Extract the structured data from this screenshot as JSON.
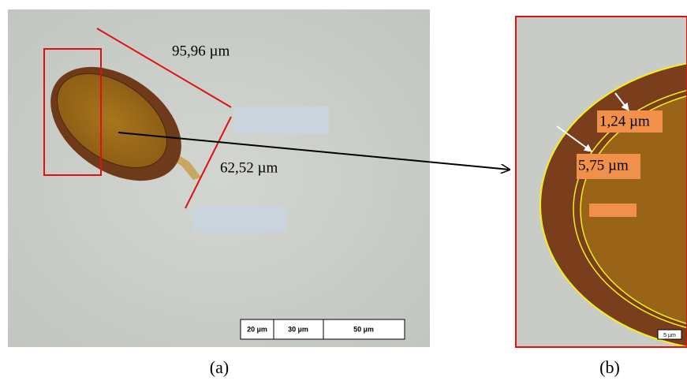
{
  "panel_a": {
    "measure_length": "95,96 µm",
    "measure_width": "62,52 µm",
    "scale_bar": [
      "20 µm",
      "30 µm",
      "50 µm"
    ],
    "caption": "(a)"
  },
  "panel_b": {
    "measure_inner": "1,24 µm",
    "measure_outer": "5,75 µm",
    "scale_bar": "5 µm",
    "caption": "(b)"
  }
}
